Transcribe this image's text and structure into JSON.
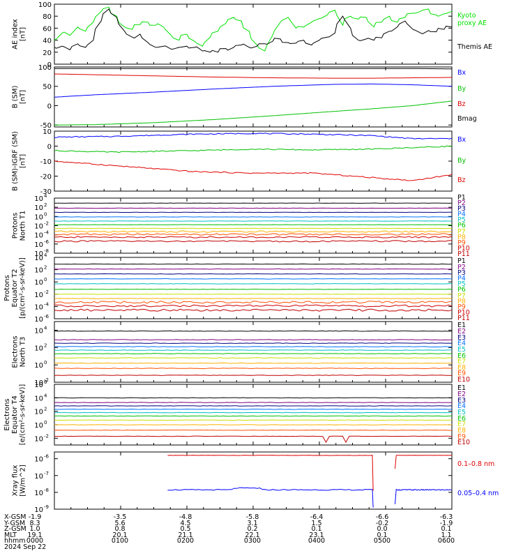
{
  "chart_data": [
    {
      "type": "line",
      "ylabel": "AE index [nT]",
      "ylim": [
        0,
        100
      ],
      "yticks": [
        "0",
        "20",
        "40",
        "60",
        "80",
        "100"
      ],
      "series": [
        {
          "name": "Kyoto proxy AE",
          "color": "#00e000",
          "values": [
            40,
            52,
            48,
            62,
            55,
            70,
            88,
            95,
            80,
            62,
            58,
            66,
            70,
            65,
            62,
            48,
            40,
            50,
            38,
            30,
            45,
            55,
            68,
            78,
            72,
            55,
            32,
            22,
            48,
            70,
            78,
            60,
            62,
            70,
            76,
            82,
            90,
            65,
            80,
            75,
            78,
            62,
            70,
            80,
            70,
            78,
            85,
            88,
            92,
            82,
            84,
            88
          ]
        },
        {
          "name": "Themis AE",
          "color": "#000000",
          "values": [
            28,
            30,
            24,
            34,
            28,
            40,
            72,
            92,
            78,
            55,
            45,
            50,
            36,
            28,
            30,
            25,
            28,
            30,
            28,
            22,
            20,
            20,
            26,
            28,
            32,
            28,
            30,
            34,
            38,
            42,
            36,
            35,
            40,
            32,
            40,
            45,
            52,
            80,
            60,
            40,
            42,
            40,
            44,
            55,
            62,
            72,
            58,
            52,
            56,
            54,
            58,
            62
          ]
        }
      ]
    },
    {
      "type": "line",
      "ylabel": "B (SM) [nT]",
      "ylim": [
        -55,
        100
      ],
      "yticks": [
        "-50",
        "0",
        "50",
        "100"
      ],
      "series": [
        {
          "name": "Bx",
          "color": "#0000ff",
          "x": [
            0,
            0.1,
            0.25,
            0.4,
            0.55,
            0.7,
            0.8,
            0.9,
            1.0
          ],
          "values": [
            22,
            28,
            35,
            43,
            50,
            55,
            56,
            54,
            50
          ]
        },
        {
          "name": "By",
          "color": "#00c000",
          "x": [
            0,
            0.1,
            0.25,
            0.4,
            0.55,
            0.7,
            0.8,
            0.9,
            1.0
          ],
          "values": [
            -50,
            -49,
            -44,
            -36,
            -26,
            -15,
            -8,
            0,
            12
          ]
        },
        {
          "name": "Bz",
          "color": "#e00000",
          "x": [
            0,
            0.1,
            0.25,
            0.4,
            0.55,
            0.7,
            0.8,
            0.9,
            1.0
          ],
          "values": [
            82,
            80,
            77,
            74,
            72,
            71,
            71,
            72,
            73
          ]
        },
        {
          "name": "Bmag",
          "color": "#000000",
          "x": [
            0,
            0.1,
            0.25,
            0.4,
            0.55,
            0.7,
            0.8,
            0.9,
            1.0
          ],
          "values": [
            96,
            96,
            96,
            96,
            96,
            96,
            96,
            96,
            95
          ]
        }
      ]
    },
    {
      "type": "line",
      "ylabel": "B (SM)-IGRF (SM) [nT]",
      "ylim": [
        -30,
        10
      ],
      "yticks": [
        "-30",
        "-20",
        "-10",
        "0",
        "10"
      ],
      "series": [
        {
          "name": "Bx",
          "color": "#0000ff",
          "x": [
            0,
            0.15,
            0.35,
            0.5,
            0.65,
            0.8,
            0.9,
            1.0
          ],
          "values": [
            6,
            6.5,
            8,
            8.5,
            8,
            7,
            5,
            5
          ]
        },
        {
          "name": "By",
          "color": "#00c000",
          "x": [
            0,
            0.15,
            0.35,
            0.5,
            0.65,
            0.8,
            0.9,
            1.0
          ],
          "values": [
            -3,
            -4,
            -3,
            -2,
            -2.5,
            -2,
            -1,
            0
          ]
        },
        {
          "name": "Bz",
          "color": "#e00000",
          "x": [
            0,
            0.15,
            0.35,
            0.5,
            0.65,
            0.8,
            0.9,
            1.0
          ],
          "values": [
            -10,
            -13,
            -17,
            -18,
            -18,
            -21,
            -23,
            -19
          ]
        }
      ]
    },
    {
      "type": "line",
      "ylabel": "Protons North T1",
      "ylog": true,
      "ylim_exp": [
        -8,
        4
      ],
      "yticks": [
        "-8",
        "-6",
        "-4",
        "-2",
        "0",
        "2",
        "4"
      ],
      "series": [
        {
          "name": "P1",
          "color": "#000000",
          "level": 2.9
        },
        {
          "name": "P2",
          "color": "#7f007f",
          "level": 1.8
        },
        {
          "name": "P3",
          "color": "#000080",
          "level": 0.9
        },
        {
          "name": "P4",
          "color": "#0070ff",
          "level": -0.1
        },
        {
          "name": "P5",
          "color": "#00c0c0",
          "level": -1.0
        },
        {
          "name": "P6",
          "color": "#00c000",
          "level": -1.8
        },
        {
          "name": "P7",
          "color": "#c8e000",
          "level": -2.6
        },
        {
          "name": "P8",
          "color": "#ffb000",
          "level": -3.3
        },
        {
          "name": "P9",
          "color": "#ff5000",
          "level": -3.9
        },
        {
          "name": "P10",
          "color": "#d00000",
          "level": -4.5
        },
        {
          "name": "P11",
          "color": "#c00000",
          "level": -5.4
        }
      ]
    },
    {
      "type": "line",
      "ylabel": "Protons Equator T2 [p/(cm²-s-sr-keV)]",
      "ylog": true,
      "ylim_exp": [
        -6,
        4
      ],
      "yticks": [
        "-6",
        "-4",
        "-2",
        "0",
        "2",
        "4"
      ],
      "series": [
        {
          "name": "P1",
          "color": "#000000",
          "level": 2.9
        },
        {
          "name": "P2",
          "color": "#7f007f",
          "level": 2.1
        },
        {
          "name": "P3",
          "color": "#000080",
          "level": 1.3
        },
        {
          "name": "P4",
          "color": "#0070ff",
          "level": 0.5
        },
        {
          "name": "P5",
          "color": "#00c0c0",
          "level": -0.3
        },
        {
          "name": "P6",
          "color": "#00c000",
          "level": -1.2
        },
        {
          "name": "P7",
          "color": "#c8e000",
          "level": -2.0
        },
        {
          "name": "P8",
          "color": "#ffb000",
          "level": -2.7
        },
        {
          "name": "P9",
          "color": "#ff5000",
          "level": -3.3
        },
        {
          "name": "P10",
          "color": "#d00000",
          "level": -3.9
        },
        {
          "name": "P11",
          "color": "#c00000",
          "level": -4.6
        }
      ]
    },
    {
      "type": "line",
      "ylabel": "Electrons North T3",
      "ylog": true,
      "ylim_exp": [
        -2,
        5
      ],
      "yticks": [
        "-2",
        "0",
        "2",
        "4"
      ],
      "series": [
        {
          "name": "E1",
          "color": "#000000",
          "level": 3.9
        },
        {
          "name": "E2",
          "color": "#7f007f",
          "level": 2.9
        },
        {
          "name": "E3",
          "color": "#000080",
          "level": 2.5
        },
        {
          "name": "E4",
          "color": "#0070ff",
          "level": 2.1
        },
        {
          "name": "E5",
          "color": "#00c0c0",
          "level": 1.7
        },
        {
          "name": "E6",
          "color": "#00c000",
          "level": 1.3
        },
        {
          "name": "E7",
          "color": "#c8e000",
          "level": 0.8
        },
        {
          "name": "E8",
          "color": "#ffb000",
          "level": 0.2
        },
        {
          "name": "E9",
          "color": "#ff5000",
          "level": -0.4
        },
        {
          "name": "E10",
          "color": "#c00000",
          "level": -1.2
        }
      ]
    },
    {
      "type": "line",
      "ylabel": "Electrons Equator T4 [e/(cm²-s-sr-keV)]",
      "ylog": true,
      "ylim_exp": [
        -3,
        6
      ],
      "yticks": [
        "-2",
        "0",
        "2",
        "4",
        "6"
      ],
      "series": [
        {
          "name": "E1",
          "color": "#000000",
          "level": 4.0
        },
        {
          "name": "E2",
          "color": "#7f007f",
          "level": 3.3
        },
        {
          "name": "E3",
          "color": "#000080",
          "level": 2.8
        },
        {
          "name": "E4",
          "color": "#0070ff",
          "level": 2.3
        },
        {
          "name": "E5",
          "color": "#00c0c0",
          "level": 1.8
        },
        {
          "name": "E6",
          "color": "#00c000",
          "level": 1.3
        },
        {
          "name": "E7",
          "color": "#c8e000",
          "level": 0.7
        },
        {
          "name": "E8",
          "color": "#ffb000",
          "level": 0.0
        },
        {
          "name": "E9",
          "color": "#ff5000",
          "level": -0.8
        },
        {
          "name": "E10",
          "color": "#c00000",
          "level": -1.7
        }
      ]
    },
    {
      "type": "line",
      "ylabel": "Xray flux [W/m^2]",
      "ylog": true,
      "ylim_exp": [
        -9,
        -5.6
      ],
      "yticks": [
        "-9",
        "-8",
        "-7",
        "-6"
      ],
      "series": [
        {
          "name": "0.1–0.8 nm",
          "color": "#e00000",
          "level": -5.8,
          "segments": [
            [
              0.285,
              0.8
            ],
            [
              0.86,
              1.0
            ]
          ]
        },
        {
          "name": "0.05–0.4 nm",
          "color": "#0000ff",
          "level": -7.85,
          "segments": [
            [
              0.285,
              0.8
            ],
            [
              0.86,
              1.0
            ]
          ]
        }
      ],
      "x_tick_labels": [
        "0000",
        "0100",
        "0200",
        "0300",
        "0400",
        "0500",
        "0600"
      ]
    }
  ],
  "footer": {
    "rows": [
      {
        "label": "X-GSM",
        "values": [
          "-1.9",
          "-3.5",
          "-4.8",
          "-5.8",
          "-6.4",
          "-6.6",
          "-6.3"
        ]
      },
      {
        "label": "Y-GSM",
        "values": [
          "8.3",
          "5.6",
          "4.5",
          "3.1",
          "1.5",
          "-0.2",
          "-1.9"
        ]
      },
      {
        "label": "Z-GSM",
        "values": [
          "1.0",
          "0.8",
          "0.5",
          "0.2",
          "0.1",
          "0.0",
          "0.1"
        ]
      },
      {
        "label": "MLT",
        "values": [
          "19.1",
          "20.1",
          "21.1",
          "22.1",
          "23.1",
          "0.1",
          "1.1"
        ]
      },
      {
        "label": "hhmm",
        "values": [
          "0000",
          "0100",
          "0200",
          "0300",
          "0400",
          "0500",
          "0600"
        ]
      }
    ],
    "date": "2024 Sep 22"
  }
}
